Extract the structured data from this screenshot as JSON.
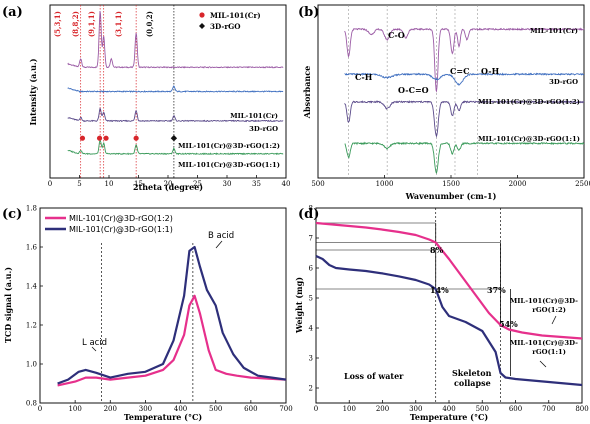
{
  "colors": {
    "mil": "#9b5ba5",
    "rgo": "#3f6fc0",
    "comp12": "#5a4a8a",
    "comp11": "#3a9a5a",
    "red": "#d8262b",
    "pink": "#e6308c",
    "navy": "#2e2f7a",
    "black": "#111111"
  },
  "chart_data": [
    {
      "panel": "(a)",
      "type": "line",
      "xlabel": "2theta (degree)",
      "ylabel": "Intensity (a.u.)",
      "xlim": [
        0,
        40
      ],
      "xticks": [
        0,
        5,
        10,
        15,
        20,
        25,
        30,
        35,
        40
      ],
      "legend": {
        "placement": "top-right",
        "entries": [
          {
            "label": "MIL-101(Cr)",
            "marker": "circle",
            "color_key": "red"
          },
          {
            "label": "3D-rGO",
            "marker": "diamond",
            "color_key": "black"
          }
        ]
      },
      "peaks": [
        {
          "label": "(5,3,1)",
          "x": 5.2
        },
        {
          "label": "(8,8,2)",
          "x": 8.5
        },
        {
          "label": "(9,1,1)",
          "x": 9.1
        },
        {
          "label": "(3,1,1)",
          "x": 14.6
        },
        {
          "label": "(0,0,2)",
          "x": 21.0
        }
      ],
      "series": [
        {
          "name": "MIL-101(Cr)",
          "color_key": "mil",
          "baseline": 0.64,
          "peaks": [
            [
              5.2,
              0.05
            ],
            [
              8.5,
              0.33
            ],
            [
              9.1,
              0.18
            ],
            [
              10.4,
              0.05
            ],
            [
              14.6,
              0.2
            ]
          ]
        },
        {
          "name": "3D-rGO",
          "color_key": "rgo",
          "baseline": 0.5,
          "peaks": [
            [
              21.0,
              0.03
            ]
          ]
        },
        {
          "name": "MIL-101(Cr)@3D-rGO(1:2)",
          "color_key": "comp12",
          "baseline": 0.33,
          "peaks": [
            [
              5.2,
              0.02
            ],
            [
              8.5,
              0.07
            ],
            [
              9.1,
              0.05
            ],
            [
              14.6,
              0.06
            ],
            [
              21.0,
              0.03
            ]
          ]
        },
        {
          "name": "MIL-101(Cr)@3D-rGO(1:1)",
          "color_key": "comp11",
          "baseline": 0.14,
          "peaks": [
            [
              5.2,
              0.02
            ],
            [
              8.5,
              0.08
            ],
            [
              9.1,
              0.06
            ],
            [
              14.6,
              0.05
            ],
            [
              21.0,
              0.03
            ]
          ]
        }
      ],
      "markers": [
        {
          "x": 5.5,
          "color_key": "red",
          "shape": "circle"
        },
        {
          "x": 8.4,
          "color_key": "red",
          "shape": "circle"
        },
        {
          "x": 9.5,
          "color_key": "red",
          "shape": "circle"
        },
        {
          "x": 14.6,
          "color_key": "red",
          "shape": "circle"
        },
        {
          "x": 21.0,
          "color_key": "black",
          "shape": "diamond"
        }
      ]
    },
    {
      "panel": "(b)",
      "type": "line",
      "xlabel": "Wavenumber (cm-1)",
      "ylabel": "Absorbance",
      "xlim": [
        500,
        2500
      ],
      "xticks": [
        500,
        1000,
        1500,
        2000,
        2500
      ],
      "vlines": [
        730,
        1020,
        1390,
        1530,
        1700
      ],
      "band_labels": [
        "C-H",
        "C-O",
        "O-C=O",
        "C=C",
        "O-H"
      ],
      "series": [
        {
          "name": "MIL-101(Cr)",
          "color_key": "mil",
          "baseline": 0.86,
          "dips": [
            [
              730,
              0.16,
              12
            ],
            [
              900,
              0.03,
              20
            ],
            [
              1020,
              0.06,
              20
            ],
            [
              1160,
              0.05,
              15
            ],
            [
              1390,
              0.36,
              12
            ],
            [
              1510,
              0.14,
              12
            ],
            [
              1560,
              0.1,
              10
            ],
            [
              1620,
              0.06,
              12
            ]
          ]
        },
        {
          "name": "3D-rGO",
          "color_key": "rgo",
          "baseline": 0.6,
          "dips": [
            [
              1020,
              0.02,
              40
            ],
            [
              1390,
              0.03,
              30
            ],
            [
              1560,
              0.06,
              30
            ]
          ]
        },
        {
          "name": "MIL-101(Cr)@3D-rGO(1:2)",
          "color_key": "comp12",
          "baseline": 0.44,
          "dips": [
            [
              730,
              0.12,
              12
            ],
            [
              1020,
              0.04,
              20
            ],
            [
              1390,
              0.2,
              14
            ],
            [
              1510,
              0.08,
              12
            ],
            [
              1560,
              0.05,
              12
            ]
          ]
        },
        {
          "name": "MIL-101(Cr)@3D-rGO(1:1)",
          "color_key": "comp11",
          "baseline": 0.2,
          "dips": [
            [
              730,
              0.08,
              12
            ],
            [
              1020,
              0.03,
              20
            ],
            [
              1390,
              0.17,
              14
            ],
            [
              1510,
              0.06,
              12
            ],
            [
              1560,
              0.04,
              12
            ]
          ]
        }
      ]
    },
    {
      "panel": "(c)",
      "type": "line",
      "xlabel": "Temperature (°C)",
      "ylabel": "TCD signal (a.u.)",
      "xlim": [
        0,
        700
      ],
      "ylim": [
        0.8,
        1.8
      ],
      "xticks": [
        0,
        100,
        200,
        300,
        400,
        500,
        600,
        700
      ],
      "yticks": [
        0.8,
        1.0,
        1.2,
        1.4,
        1.6,
        1.8
      ],
      "legend_placement": "top-left",
      "annotations": [
        {
          "text": "L acid",
          "x": 175
        },
        {
          "text": "B acid",
          "x": 435
        }
      ],
      "series": [
        {
          "name": "MIL-101(Cr)@3D-rGO(1:2)",
          "color_key": "pink",
          "x": [
            50,
            100,
            130,
            160,
            200,
            250,
            300,
            350,
            380,
            410,
            425,
            440,
            455,
            480,
            500,
            530,
            560,
            600,
            650,
            700
          ],
          "y": [
            0.89,
            0.91,
            0.93,
            0.93,
            0.92,
            0.93,
            0.94,
            0.97,
            1.02,
            1.15,
            1.3,
            1.35,
            1.26,
            1.07,
            0.97,
            0.95,
            0.94,
            0.93,
            0.925,
            0.92
          ]
        },
        {
          "name": "MIL-101(Cr)@3D-rGO(1:1)",
          "color_key": "navy",
          "x": [
            50,
            80,
            110,
            130,
            160,
            200,
            250,
            300,
            350,
            380,
            410,
            425,
            440,
            455,
            475,
            500,
            520,
            550,
            580,
            620,
            660,
            700
          ],
          "y": [
            0.9,
            0.92,
            0.96,
            0.97,
            0.955,
            0.93,
            0.95,
            0.96,
            1.0,
            1.12,
            1.35,
            1.58,
            1.6,
            1.5,
            1.38,
            1.3,
            1.16,
            1.05,
            0.98,
            0.94,
            0.93,
            0.92
          ]
        }
      ]
    },
    {
      "panel": "(d)",
      "type": "line",
      "xlabel": "Temperature (°C)",
      "ylabel": "Weight (mg)",
      "xlim": [
        0,
        800
      ],
      "ylim": [
        1.5,
        8
      ],
      "xticks": [
        0,
        100,
        200,
        300,
        400,
        500,
        600,
        700,
        800
      ],
      "yticks": [
        2,
        3,
        4,
        5,
        6,
        7,
        8
      ],
      "vlines": [
        360,
        555
      ],
      "region_labels": [
        "Loss of water",
        "Skeleton collapse"
      ],
      "percent_labels": [
        "8%",
        "14%",
        "37%",
        "54%"
      ],
      "series": [
        {
          "name": "MIL-101(Cr)@3D-rGO(1:2)",
          "color_key": "pink",
          "x": [
            0,
            50,
            100,
            150,
            200,
            250,
            300,
            340,
            360,
            400,
            440,
            480,
            520,
            555,
            580,
            620,
            680,
            740,
            800
          ],
          "y": [
            7.5,
            7.45,
            7.4,
            7.35,
            7.28,
            7.2,
            7.1,
            6.95,
            6.85,
            6.3,
            5.7,
            5.1,
            4.5,
            4.1,
            3.95,
            3.85,
            3.75,
            3.7,
            3.65
          ]
        },
        {
          "name": "MIL-101(Cr)@3D-rGO(1:1)",
          "color_key": "navy",
          "x": [
            0,
            20,
            40,
            60,
            100,
            150,
            200,
            250,
            300,
            340,
            360,
            380,
            400,
            450,
            500,
            540,
            555,
            570,
            600,
            650,
            700,
            750,
            800
          ],
          "y": [
            6.4,
            6.3,
            6.1,
            6.0,
            5.95,
            5.9,
            5.82,
            5.72,
            5.6,
            5.45,
            5.3,
            4.7,
            4.4,
            4.2,
            3.9,
            3.2,
            2.5,
            2.35,
            2.3,
            2.25,
            2.2,
            2.15,
            2.1
          ]
        }
      ]
    }
  ]
}
